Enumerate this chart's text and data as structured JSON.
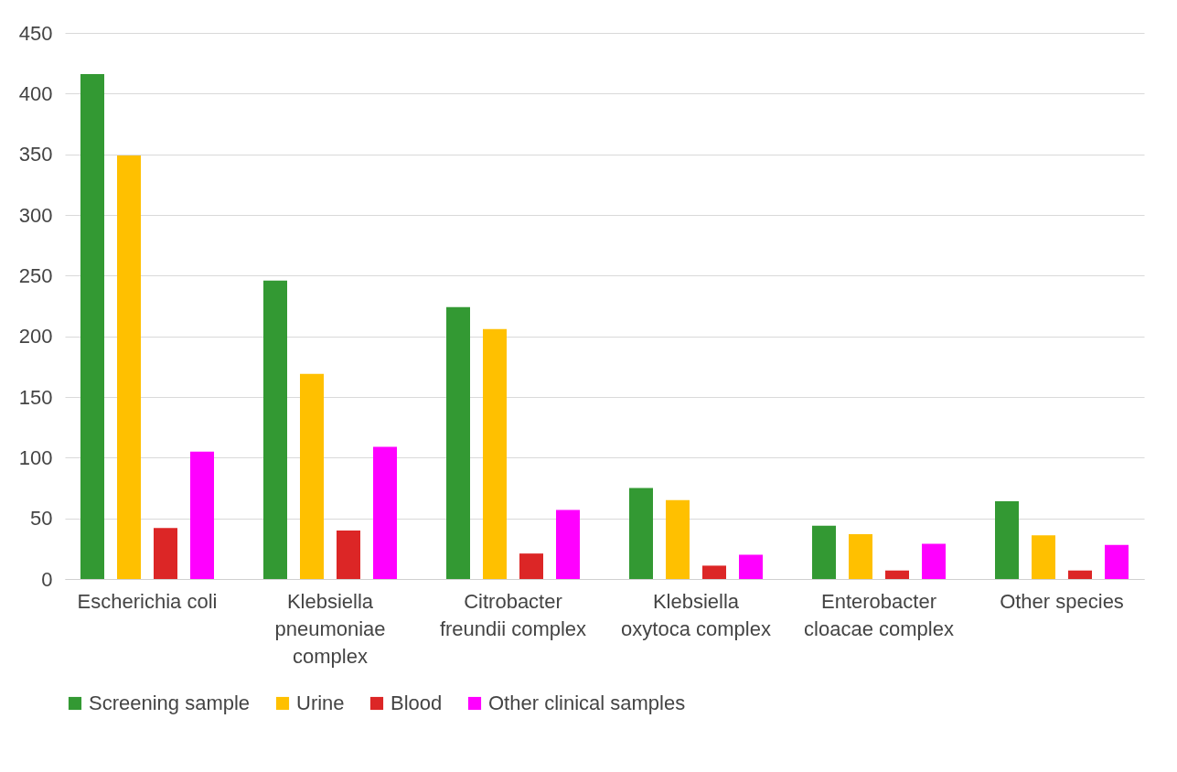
{
  "chart_data": {
    "type": "bar",
    "categories": [
      "Escherichia coli",
      "Klebsiella pneumoniae complex",
      "Citrobacter freundii complex",
      "Klebsiella oxytoca complex",
      "Enterobacter cloacae complex",
      "Other species"
    ],
    "series": [
      {
        "name": "Screening sample",
        "color": "#339933",
        "values": [
          416,
          246,
          224,
          75,
          44,
          64
        ]
      },
      {
        "name": "Urine",
        "color": "#ffc000",
        "values": [
          349,
          169,
          206,
          65,
          37,
          36
        ]
      },
      {
        "name": "Blood",
        "color": "#dc2626",
        "values": [
          42,
          40,
          21,
          11,
          7,
          7
        ]
      },
      {
        "name": "Other clinical samples",
        "color": "#ff00ff",
        "values": [
          105,
          109,
          57,
          20,
          29,
          28
        ]
      }
    ],
    "ylim": [
      0,
      450
    ],
    "yticks": [
      0,
      50,
      100,
      150,
      200,
      250,
      300,
      350,
      400,
      450
    ],
    "grid": "y",
    "legend": "bottom"
  }
}
